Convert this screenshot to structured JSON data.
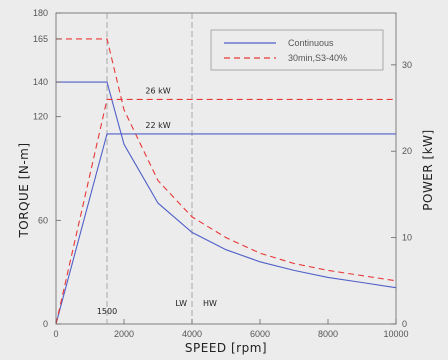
{
  "chart_data": {
    "type": "line",
    "title": "",
    "xlabel": "SPEED [rpm]",
    "ylabel_left": "TORQUE [N-m]",
    "ylabel_right": "POWER [kW]",
    "xlim": [
      0,
      10000
    ],
    "ylim_left": [
      0,
      180
    ],
    "ylim_right": [
      0,
      36
    ],
    "x_ticks": [
      0,
      2000,
      4000,
      6000,
      8000,
      10000
    ],
    "y_left_ticks": [
      0,
      60,
      120,
      180
    ],
    "y_left_extra_ticks": [
      140,
      165
    ],
    "y_right_ticks": [
      0,
      10,
      20,
      30
    ],
    "grid": false,
    "legend_position": "top-right",
    "series": [
      {
        "name": "Continuous",
        "quantity": "torque",
        "axis": "left",
        "color": "#5060c8",
        "dash": "solid",
        "x": [
          0,
          1500,
          2000,
          3000,
          4000,
          5000,
          6000,
          7000,
          8000,
          9000,
          10000
        ],
        "y": [
          140,
          140,
          104,
          70,
          53,
          43,
          36,
          31,
          27,
          24,
          21
        ]
      },
      {
        "name": "30min,S3-40%",
        "quantity": "torque",
        "axis": "left",
        "color": "#e83838",
        "dash": "dashed",
        "x": [
          0,
          1500,
          2000,
          3000,
          4000,
          5000,
          6000,
          7000,
          8000,
          9000,
          10000
        ],
        "y": [
          165,
          165,
          124,
          83,
          62,
          50,
          41,
          35,
          31,
          28,
          25
        ]
      },
      {
        "quantity": "power",
        "axis": "right",
        "color": "#5060c8",
        "dash": "solid",
        "x": [
          0,
          1500,
          10000
        ],
        "y": [
          0,
          22,
          22
        ]
      },
      {
        "quantity": "power",
        "axis": "right",
        "color": "#e83838",
        "dash": "dashed",
        "x": [
          0,
          1500,
          10000
        ],
        "y": [
          0,
          26,
          26
        ]
      }
    ],
    "reference_lines": [
      {
        "x": 1500,
        "label": "1500"
      },
      {
        "x": 4000,
        "label_left": "LW",
        "label_right": "HW"
      }
    ],
    "annotations": [
      {
        "text": "26 kW",
        "x": 3000,
        "y_right": 26
      },
      {
        "text": "22 kW",
        "x": 3000,
        "y_right": 22
      }
    ]
  },
  "colors": {
    "background": "#ececec",
    "axis": "#555555",
    "continuous": "#5060c8",
    "s3": "#e83838",
    "reference": "#999999"
  }
}
